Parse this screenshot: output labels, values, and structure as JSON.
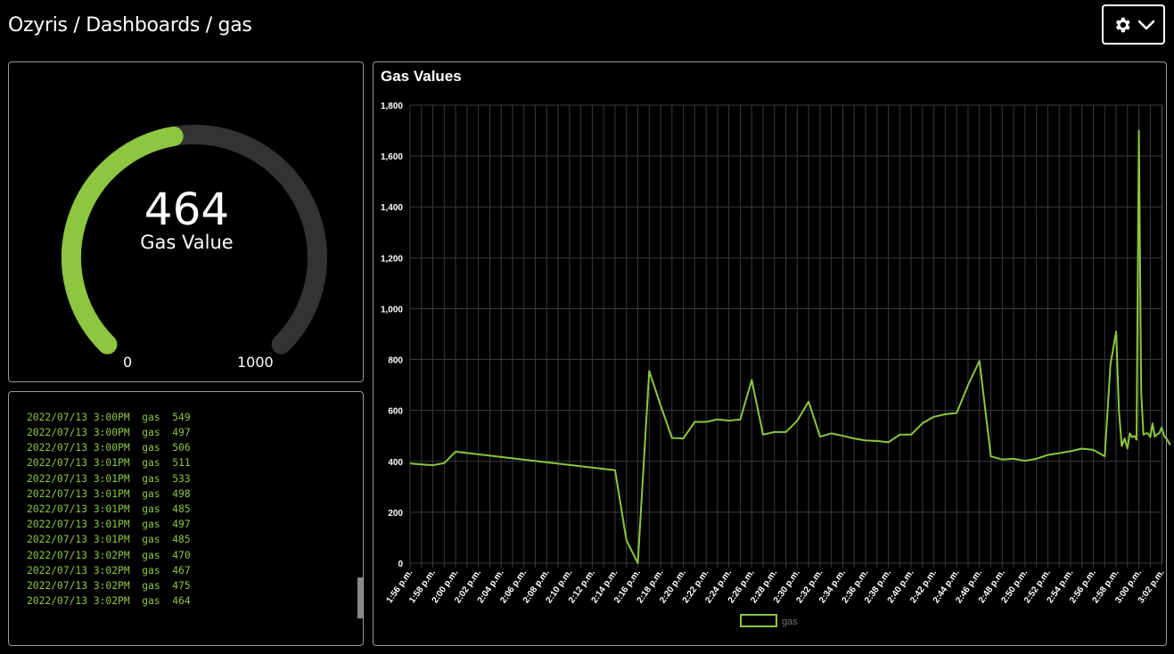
{
  "breadcrumb": {
    "app": "Ozyris",
    "separator": " / ",
    "section": "Dashboards",
    "page": "gas"
  },
  "settings": {
    "icon": "gear-icon",
    "dropdown_icon": "chevron-down-icon"
  },
  "colors": {
    "accent": "#8dc63f",
    "track": "#333333",
    "grid": "#3a3a3a"
  },
  "gauge": {
    "value": "464",
    "label": "Gas Value",
    "min": "0",
    "max": "1000",
    "fraction": 0.464
  },
  "log": {
    "partial_first": "2022/07/13 3:00PM  gas  549",
    "entries": [
      "2022/07/13 3:00PM  gas  497",
      "2022/07/13 3:00PM  gas  506",
      "2022/07/13 3:01PM  gas  511",
      "2022/07/13 3:01PM  gas  533",
      "2022/07/13 3:01PM  gas  498",
      "2022/07/13 3:01PM  gas  485",
      "2022/07/13 3:01PM  gas  497",
      "2022/07/13 3:01PM  gas  485",
      "2022/07/13 3:02PM  gas  470",
      "2022/07/13 3:02PM  gas  467",
      "2022/07/13 3:02PM  gas  475",
      "2022/07/13 3:02PM  gas  464"
    ]
  },
  "chart_data": {
    "type": "line",
    "title": "Gas Values",
    "ylim": [
      0,
      1800
    ],
    "yticks": [
      0,
      200,
      400,
      600,
      800,
      "1,000",
      "1,200",
      "1,400",
      "1,600",
      "1,800"
    ],
    "xtick_labels": [
      "1:56 p.m.",
      "1:58 p.m.",
      "2:00 p.m.",
      "2:02 p.m.",
      "2:04 p.m.",
      "2:06 p.m.",
      "2:08 p.m.",
      "2:10 p.m.",
      "2:12 p.m.",
      "2:14 p.m.",
      "2:16 p.m.",
      "2:18 p.m.",
      "2:20 p.m.",
      "2:22 p.m.",
      "2:24 p.m.",
      "2:26 p.m.",
      "2:28 p.m.",
      "2:30 p.m.",
      "2:32 p.m.",
      "2:34 p.m.",
      "2:36 p.m.",
      "2:38 p.m.",
      "2:40 p.m.",
      "2:42 p.m.",
      "2:44 p.m.",
      "2:46 p.m.",
      "2:48 p.m.",
      "2:50 p.m.",
      "2:52 p.m.",
      "2:54 p.m.",
      "2:56 p.m.",
      "2:58 p.m.",
      "3:00 p.m.",
      "3:02 p.m."
    ],
    "grid": true,
    "legend_position": "bottom",
    "series": [
      {
        "name": "gas",
        "color": "#8dc63f",
        "x": [
          "1:56 p.m.",
          "1:57 p.m.",
          "1:58 p.m.",
          "1:59 p.m.",
          "2:00 p.m.",
          "2:14 p.m.",
          "2:15 p.m.",
          "2:16 p.m.",
          "2:17 p.m.",
          "2:18 p.m.",
          "2:19 p.m.",
          "2:20 p.m.",
          "2:21 p.m.",
          "2:22 p.m.",
          "2:23 p.m.",
          "2:24 p.m.",
          "2:25 p.m.",
          "2:26 p.m.",
          "2:27 p.m.",
          "2:28 p.m.",
          "2:29 p.m.",
          "2:30 p.m.",
          "2:31 p.m.",
          "2:32 p.m.",
          "2:33 p.m.",
          "2:34 p.m.",
          "2:35 p.m.",
          "2:36 p.m.",
          "2:37 p.m.",
          "2:38 p.m.",
          "2:39 p.m.",
          "2:40 p.m.",
          "2:41 p.m.",
          "2:42 p.m.",
          "2:43 p.m.",
          "2:44 p.m.",
          "2:45 p.m.",
          "2:46 p.m.",
          "2:47 p.m.",
          "2:48 p.m.",
          "2:49 p.m.",
          "2:50 p.m.",
          "2:51 p.m.",
          "2:52 p.m.",
          "2:53 p.m.",
          "2:54 p.m.",
          "2:55 p.m.",
          "2:56 p.m.",
          "2:57 p.m.",
          "2:57 p.m.",
          "2:58 p.m.",
          "2:58 p.m.",
          "2:58 p.m.",
          "2:58 p.m.",
          "2:59 p.m.",
          "2:59 p.m.",
          "2:59 p.m.",
          "2:59 p.m.",
          "2:59 p.m.",
          "3:00 p.m.",
          "3:00 p.m.",
          "3:00 p.m.",
          "3:00 p.m.",
          "3:00 p.m.",
          "3:01 p.m.",
          "3:01 p.m.",
          "3:01 p.m.",
          "3:01 p.m.",
          "3:01 p.m.",
          "3:02 p.m.",
          "3:02 p.m.",
          "3:02 p.m.",
          "3:02 p.m."
        ],
        "values": [
          392,
          388,
          385,
          393,
          438,
          365,
          90,
          0,
          755,
          620,
          492,
          490,
          555,
          555,
          565,
          560,
          565,
          720,
          505,
          515,
          515,
          560,
          635,
          497,
          510,
          500,
          490,
          482,
          480,
          475,
          505,
          505,
          550,
          575,
          585,
          590,
          700,
          795,
          420,
          407,
          410,
          402,
          410,
          425,
          432,
          440,
          450,
          445,
          420,
          780,
          910,
          600,
          460,
          490,
          450,
          510,
          495,
          500,
          485,
          1700,
          670,
          505,
          510,
          510,
          495,
          549,
          497,
          506,
          511,
          533,
          498,
          485,
          464
        ]
      }
    ]
  }
}
